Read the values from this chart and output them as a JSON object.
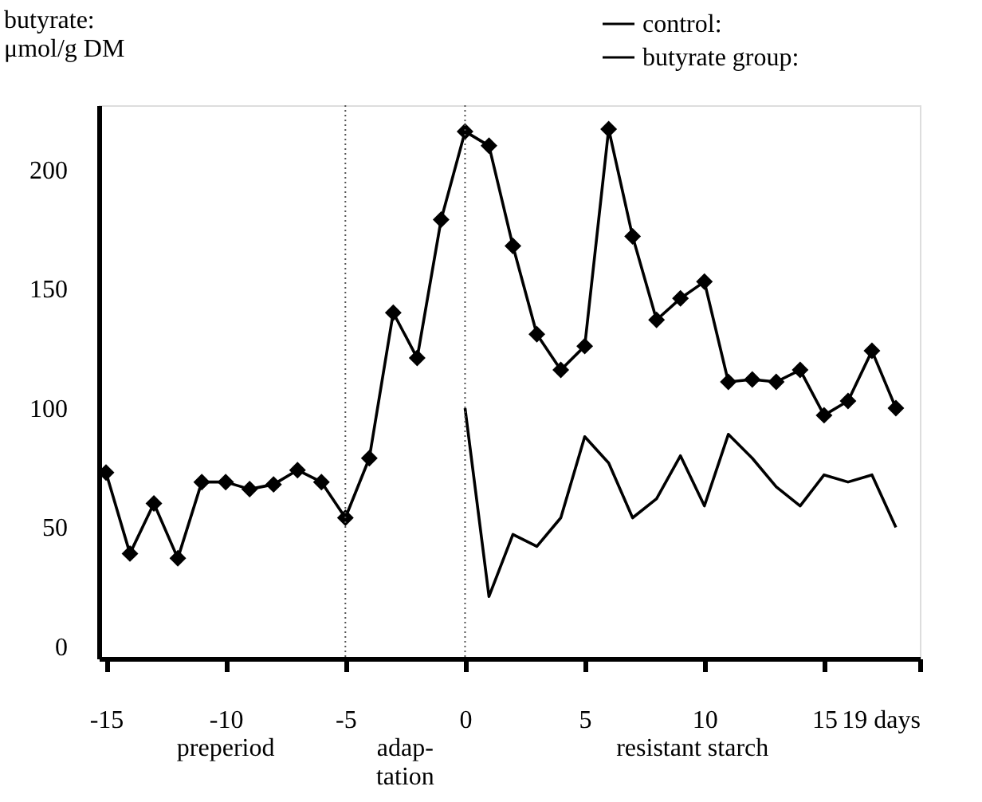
{
  "chart_data": {
    "type": "line",
    "ylabel": "butyrate:\nμmol/g DM",
    "x": [
      -15,
      -14,
      -13,
      -12,
      -11,
      -10,
      -9,
      -8,
      -7,
      -6,
      -5,
      -4,
      -3,
      -2,
      -1,
      0,
      1,
      2,
      3,
      4,
      5,
      6,
      7,
      8,
      9,
      10,
      11,
      12,
      13,
      14,
      15,
      16,
      17,
      18
    ],
    "series": [
      {
        "name": "control:",
        "color": "#000000",
        "marker": "none",
        "x": [
          0,
          1,
          2,
          3,
          4,
          5,
          6,
          7,
          8,
          9,
          10,
          11,
          12,
          13,
          14,
          15,
          16,
          17,
          18
        ],
        "values": [
          100,
          21,
          47,
          42,
          54,
          88,
          77,
          54,
          62,
          80,
          59,
          89,
          79,
          67,
          59,
          72,
          69,
          72,
          50
        ]
      },
      {
        "name": "butyrate group:",
        "color": "#000000",
        "marker": "diamond",
        "values": [
          73,
          39,
          60,
          37,
          69,
          69,
          66,
          68,
          74,
          69,
          54,
          79,
          140,
          121,
          179,
          216,
          210,
          168,
          131,
          116,
          126,
          217,
          172,
          137,
          146,
          153,
          111,
          112,
          111,
          116,
          97,
          103,
          124,
          100
        ]
      }
    ],
    "xlim": [
      -15.3,
      19
    ],
    "xticks": [
      -15,
      -10,
      -5,
      0,
      5,
      10,
      15,
      {
        "value": 19,
        "label": "19 days"
      }
    ],
    "ylim": [
      -5,
      227
    ],
    "yticks": [
      0,
      50,
      100,
      150,
      200
    ],
    "ref_lines": [
      {
        "axis": "x",
        "value": -5,
        "line_style": "dotted"
      },
      {
        "axis": "x",
        "value": 0,
        "line_style": "dotted"
      }
    ],
    "annotations": [
      "preperiod",
      "adap-\ntation",
      "resistant starch"
    ],
    "grid": false,
    "legend": "top right",
    "line_style": "solid"
  }
}
